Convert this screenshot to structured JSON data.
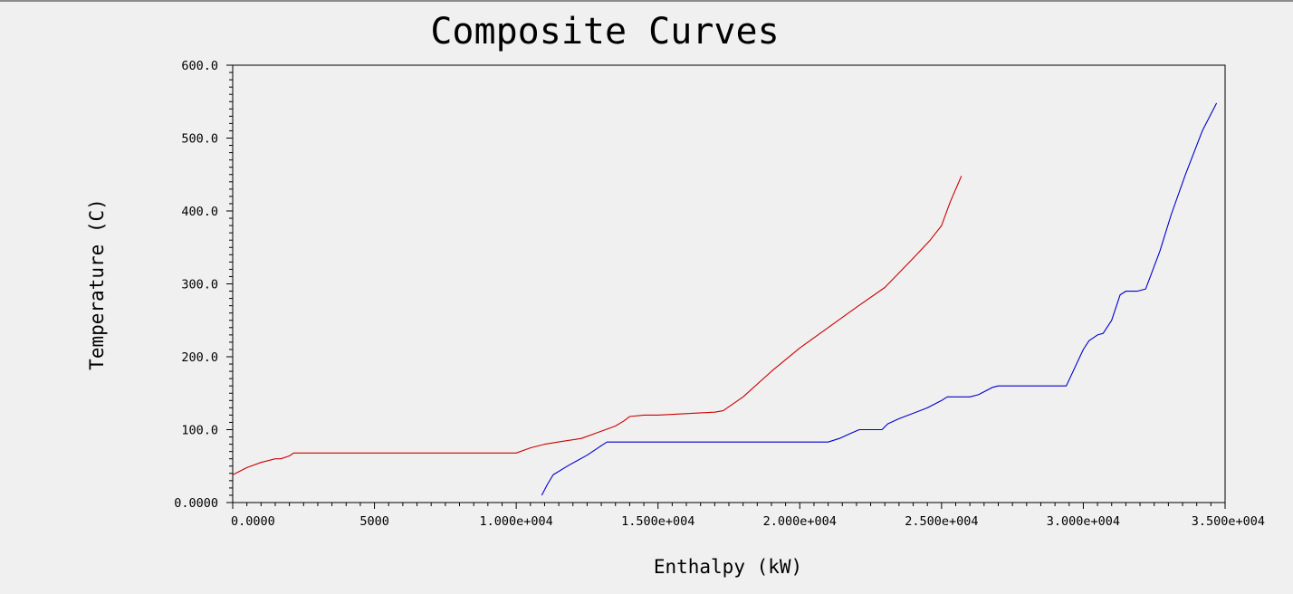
{
  "chart_data": {
    "type": "line",
    "title": "Composite Curves",
    "xlabel": "Enthalpy (kW)",
    "ylabel": "Temperature (C)",
    "xlim": [
      0,
      35000
    ],
    "ylim": [
      0,
      600
    ],
    "x_ticks": [
      {
        "value": 0,
        "label": "0.0000"
      },
      {
        "value": 5000,
        "label": "5000"
      },
      {
        "value": 10000,
        "label": "1.000e+004"
      },
      {
        "value": 15000,
        "label": "1.500e+004"
      },
      {
        "value": 20000,
        "label": "2.000e+004"
      },
      {
        "value": 25000,
        "label": "2.500e+004"
      },
      {
        "value": 30000,
        "label": "3.000e+004"
      },
      {
        "value": 35000,
        "label": "3.500e+004"
      }
    ],
    "y_ticks": [
      {
        "value": 0,
        "label": "0.0000"
      },
      {
        "value": 100,
        "label": "100.0"
      },
      {
        "value": 200,
        "label": "200.0"
      },
      {
        "value": 300,
        "label": "300.0"
      },
      {
        "value": 400,
        "label": "400.0"
      },
      {
        "value": 500,
        "label": "500.0"
      },
      {
        "value": 600,
        "label": "600.0"
      }
    ],
    "grid": false,
    "series": [
      {
        "color": "#cc0000",
        "points": [
          [
            0,
            38
          ],
          [
            500,
            48
          ],
          [
            1000,
            55
          ],
          [
            1500,
            60
          ],
          [
            1700,
            60
          ],
          [
            2000,
            64
          ],
          [
            2150,
            68
          ],
          [
            5000,
            68
          ],
          [
            10000,
            68
          ],
          [
            10500,
            75
          ],
          [
            11000,
            80
          ],
          [
            11800,
            85
          ],
          [
            12300,
            88
          ],
          [
            12800,
            95
          ],
          [
            13500,
            105
          ],
          [
            13800,
            112
          ],
          [
            14000,
            118
          ],
          [
            14500,
            120
          ],
          [
            15000,
            120
          ],
          [
            16000,
            122
          ],
          [
            17000,
            124
          ],
          [
            17300,
            126
          ],
          [
            18000,
            145
          ],
          [
            19000,
            180
          ],
          [
            20000,
            212
          ],
          [
            21000,
            240
          ],
          [
            22000,
            268
          ],
          [
            23000,
            295
          ],
          [
            24000,
            335
          ],
          [
            24600,
            360
          ],
          [
            25000,
            380
          ],
          [
            25300,
            412
          ],
          [
            25700,
            448
          ]
        ]
      },
      {
        "color": "#0000cc",
        "points": [
          [
            10900,
            10
          ],
          [
            11100,
            25
          ],
          [
            11300,
            38
          ],
          [
            11800,
            50
          ],
          [
            12500,
            65
          ],
          [
            13000,
            78
          ],
          [
            13200,
            83
          ],
          [
            15000,
            83
          ],
          [
            18000,
            83
          ],
          [
            21000,
            83
          ],
          [
            21400,
            88
          ],
          [
            21800,
            95
          ],
          [
            22100,
            100
          ],
          [
            22600,
            100
          ],
          [
            22900,
            100
          ],
          [
            23100,
            108
          ],
          [
            23500,
            115
          ],
          [
            24500,
            130
          ],
          [
            25000,
            140
          ],
          [
            25200,
            145
          ],
          [
            26000,
            145
          ],
          [
            26300,
            148
          ],
          [
            26800,
            158
          ],
          [
            27000,
            160
          ],
          [
            28000,
            160
          ],
          [
            29000,
            160
          ],
          [
            29400,
            160
          ],
          [
            30000,
            210
          ],
          [
            30200,
            222
          ],
          [
            30500,
            230
          ],
          [
            30700,
            232
          ],
          [
            31000,
            250
          ],
          [
            31300,
            285
          ],
          [
            31500,
            290
          ],
          [
            31900,
            290
          ],
          [
            32200,
            293
          ],
          [
            32700,
            345
          ],
          [
            33100,
            395
          ],
          [
            33600,
            450
          ],
          [
            34200,
            510
          ],
          [
            34700,
            548
          ]
        ]
      }
    ]
  }
}
